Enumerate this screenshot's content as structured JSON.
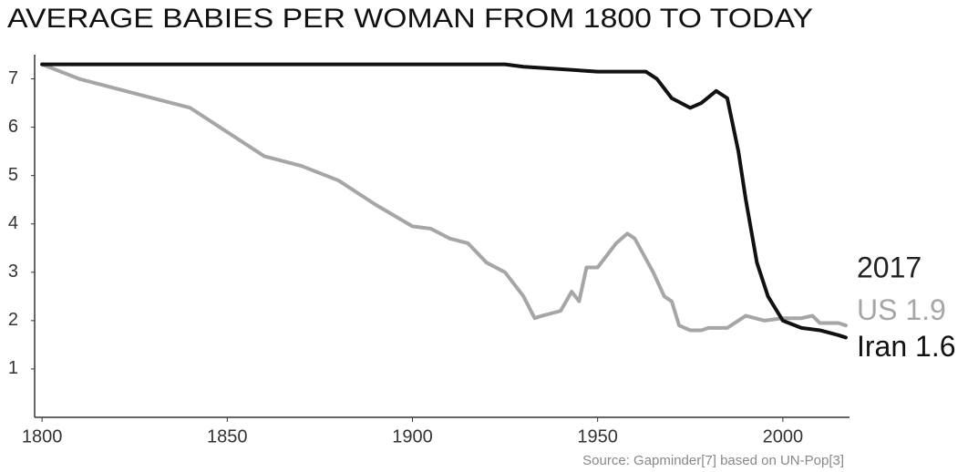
{
  "chart_data": {
    "type": "line",
    "title": "AVERAGE BABIES PER WOMAN FROM 1800 TO TODAY",
    "source": "Source: Gapminder[7] based on UN-Pop[3]",
    "end_year_label": "2017",
    "xlim": [
      1798,
      2018
    ],
    "xticks": [
      1800,
      1850,
      1900,
      1950,
      2000
    ],
    "ylim": [
      0,
      7.5
    ],
    "yticks": [
      1,
      2,
      3,
      4,
      5,
      6,
      7
    ],
    "grid": false,
    "series": [
      {
        "name": "US",
        "end_label": "1.9",
        "color": "#a6a6a6",
        "x": [
          1800,
          1810,
          1820,
          1830,
          1840,
          1850,
          1860,
          1870,
          1880,
          1890,
          1900,
          1905,
          1910,
          1915,
          1920,
          1925,
          1930,
          1933,
          1935,
          1940,
          1943,
          1945,
          1947,
          1950,
          1955,
          1958,
          1960,
          1965,
          1968,
          1970,
          1972,
          1975,
          1978,
          1980,
          1985,
          1990,
          1995,
          2000,
          2005,
          2008,
          2010,
          2015,
          2017
        ],
        "values": [
          7.3,
          7.0,
          6.8,
          6.6,
          6.4,
          5.9,
          5.4,
          5.2,
          4.9,
          4.4,
          3.95,
          3.9,
          3.7,
          3.6,
          3.2,
          3.0,
          2.5,
          2.05,
          2.1,
          2.2,
          2.6,
          2.4,
          3.1,
          3.1,
          3.6,
          3.8,
          3.7,
          3.0,
          2.5,
          2.4,
          1.9,
          1.8,
          1.8,
          1.85,
          1.85,
          2.1,
          2.0,
          2.05,
          2.05,
          2.1,
          1.95,
          1.95,
          1.9
        ]
      },
      {
        "name": "Iran",
        "end_label": "1.6",
        "color": "#111111",
        "x": [
          1800,
          1925,
          1930,
          1940,
          1950,
          1963,
          1966,
          1970,
          1975,
          1978,
          1982,
          1985,
          1988,
          1990,
          1993,
          1996,
          2000,
          2005,
          2010,
          2015,
          2017
        ],
        "values": [
          7.3,
          7.3,
          7.25,
          7.2,
          7.15,
          7.15,
          7.0,
          6.6,
          6.4,
          6.5,
          6.75,
          6.6,
          5.5,
          4.5,
          3.2,
          2.5,
          2.0,
          1.85,
          1.8,
          1.7,
          1.65
        ]
      }
    ]
  }
}
